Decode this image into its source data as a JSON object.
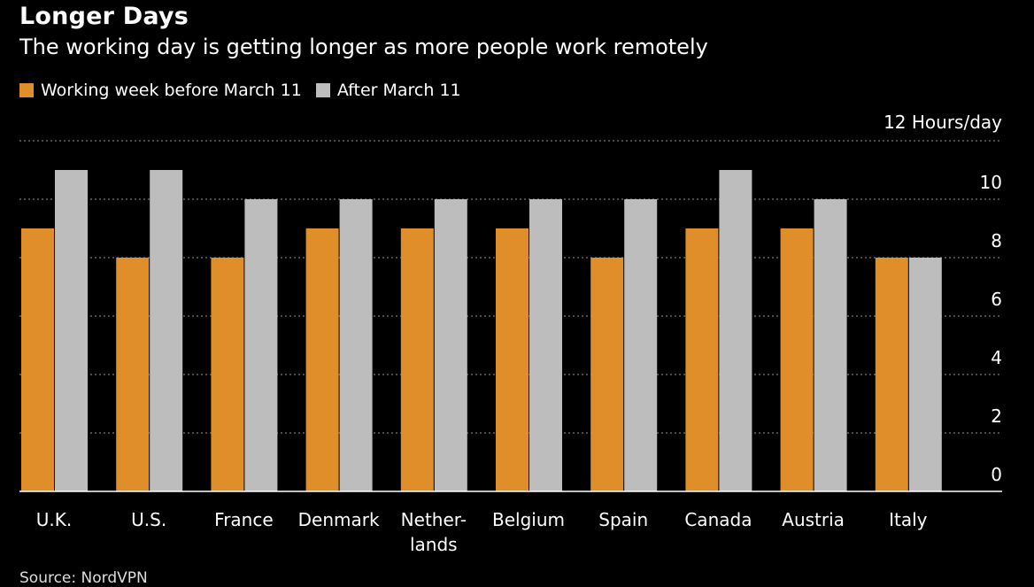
{
  "header": {
    "title": "Longer Days",
    "subtitle": "The working day is getting longer as more people work remotely"
  },
  "legend": {
    "items": [
      {
        "label": "Working week before March 11",
        "color": "#E08E29"
      },
      {
        "label": "After March 11",
        "color": "#BDBDBD"
      }
    ]
  },
  "footer": {
    "source": "Source: NordVPN"
  },
  "colors": {
    "background": "#000000",
    "grid": "#7a7a7a",
    "axis": "#ffffff"
  },
  "chart_data": {
    "type": "bar",
    "title": "Longer Days",
    "subtitle": "The working day is getting longer as more people work remotely",
    "xlabel": "",
    "ylabel": "Hours/day",
    "unit_label": "Hours/day",
    "ylim": [
      0,
      12
    ],
    "yticks": [
      0,
      2,
      4,
      6,
      8,
      10,
      12
    ],
    "grid": true,
    "legend_position": "top-left",
    "categories": [
      "U.K.",
      "U.S.",
      "France",
      "Denmark",
      "Nether-\nlands",
      "Belgium",
      "Spain",
      "Canada",
      "Austria",
      "Italy"
    ],
    "series": [
      {
        "name": "Working week before March 11",
        "color": "#E08E29",
        "values": [
          9,
          8,
          8,
          9,
          9,
          9,
          8,
          9,
          9,
          8
        ]
      },
      {
        "name": "After March 11",
        "color": "#BDBDBD",
        "values": [
          11,
          11,
          10,
          10,
          10,
          10,
          10,
          11,
          10,
          8
        ]
      }
    ]
  }
}
